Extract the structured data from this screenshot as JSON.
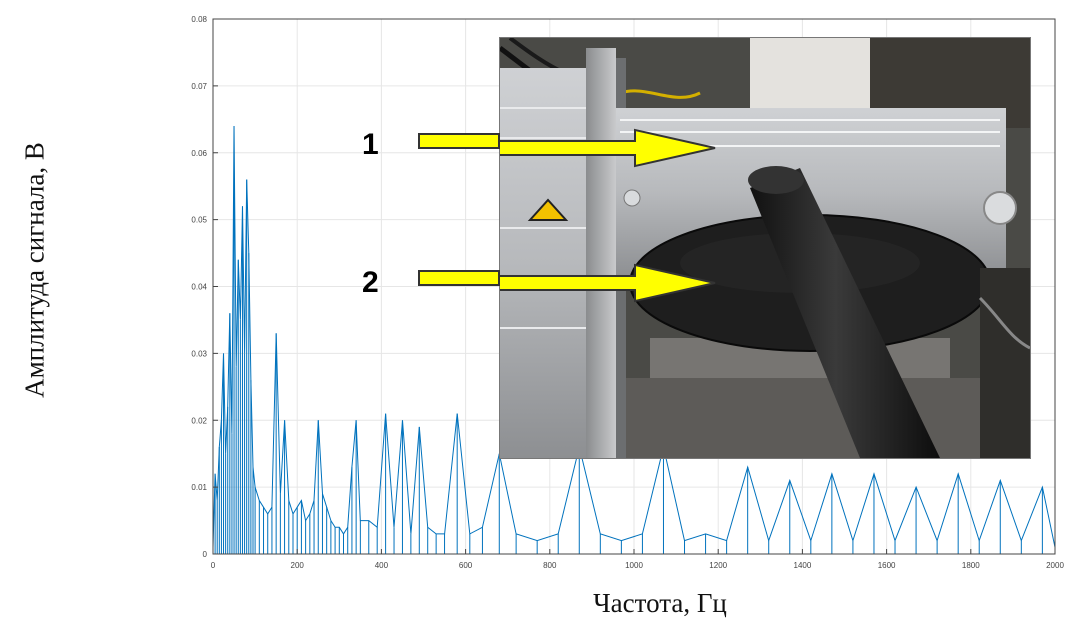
{
  "axis_titles": {
    "y": "Амплитуда сигнала, В",
    "x": "Частота, Гц"
  },
  "chart_data": {
    "type": "line",
    "xlim": [
      0,
      2000
    ],
    "ylim": [
      0,
      0.08
    ],
    "x_ticks": [
      "0",
      "200",
      "400",
      "600",
      "800",
      "1000",
      "1200",
      "1400",
      "1600",
      "1800",
      "2000"
    ],
    "y_ticks": [
      "0",
      "0.01",
      "0.02",
      "0.03",
      "0.04",
      "0.05",
      "0.06",
      "0.07",
      "0.08"
    ],
    "grid": true,
    "line_color": "#0072bd",
    "series": [
      {
        "x": [
          0,
          5,
          10,
          15,
          20,
          25,
          30,
          35,
          40,
          45,
          50,
          55,
          60,
          65,
          70,
          75,
          80,
          85,
          90,
          95,
          100,
          110,
          120,
          130,
          140,
          150,
          160,
          170,
          180,
          190,
          200,
          210,
          220,
          230,
          240,
          250,
          260,
          270,
          280,
          290,
          300,
          310,
          320,
          330,
          340,
          350,
          370,
          390,
          410,
          430,
          450,
          470,
          490,
          510,
          530,
          550,
          580,
          610,
          640,
          680,
          720,
          770,
          820,
          870,
          920,
          970,
          1020,
          1070,
          1120,
          1170,
          1220,
          1270,
          1320,
          1370,
          1420,
          1470,
          1520,
          1570,
          1620,
          1670,
          1720,
          1770,
          1820,
          1870,
          1920,
          1970,
          2000
        ],
        "y": [
          0.001,
          0.012,
          0.008,
          0.016,
          0.02,
          0.03,
          0.015,
          0.022,
          0.036,
          0.018,
          0.064,
          0.028,
          0.044,
          0.035,
          0.052,
          0.03,
          0.056,
          0.045,
          0.026,
          0.013,
          0.01,
          0.008,
          0.007,
          0.006,
          0.007,
          0.033,
          0.009,
          0.02,
          0.008,
          0.006,
          0.007,
          0.008,
          0.005,
          0.006,
          0.008,
          0.02,
          0.009,
          0.007,
          0.005,
          0.004,
          0.004,
          0.003,
          0.004,
          0.013,
          0.02,
          0.005,
          0.005,
          0.004,
          0.021,
          0.004,
          0.02,
          0.003,
          0.019,
          0.004,
          0.003,
          0.003,
          0.021,
          0.003,
          0.004,
          0.015,
          0.003,
          0.002,
          0.003,
          0.016,
          0.003,
          0.002,
          0.003,
          0.016,
          0.002,
          0.003,
          0.002,
          0.013,
          0.002,
          0.011,
          0.002,
          0.012,
          0.002,
          0.012,
          0.002,
          0.01,
          0.002,
          0.012,
          0.002,
          0.011,
          0.002,
          0.01,
          0.001
        ]
      }
    ]
  },
  "photo": {
    "callouts": [
      "1",
      "2"
    ],
    "arrow_color": "#ffff00"
  }
}
